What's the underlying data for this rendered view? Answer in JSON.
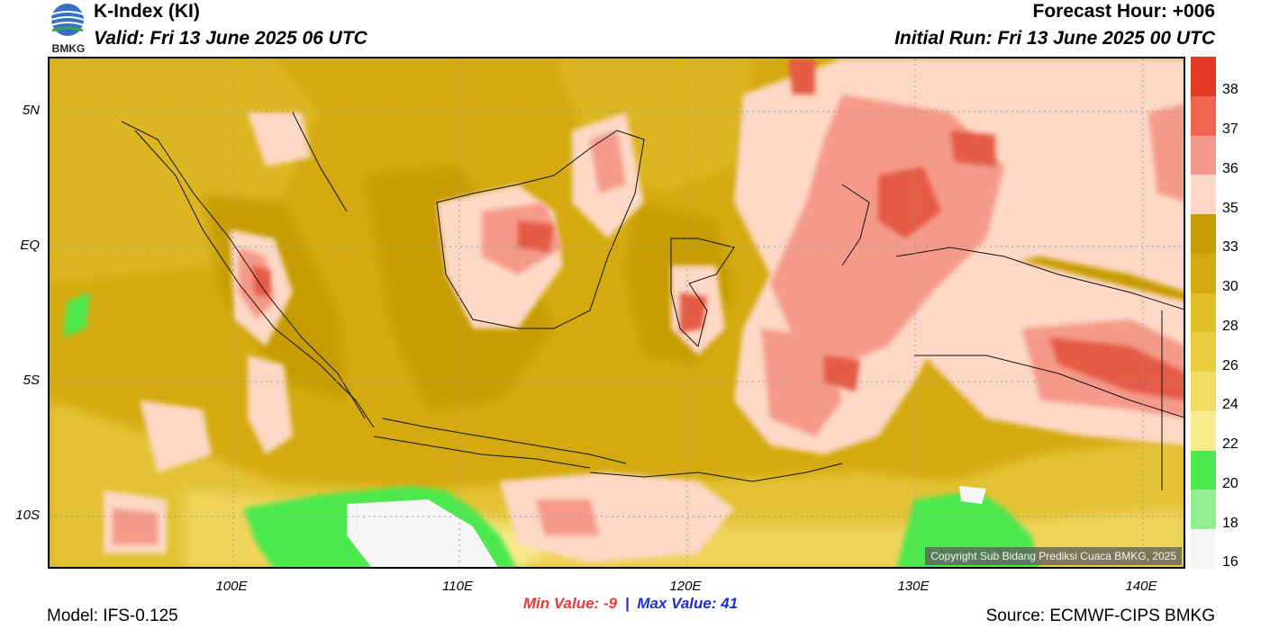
{
  "header": {
    "title": "K-Index (KI)",
    "valid": "Valid: Fri 13 June 2025 06 UTC",
    "forecast_hour": "Forecast Hour: +006",
    "initial_run": "Initial Run: Fri 13 June 2025 00 UTC",
    "logo_text": "BMKG"
  },
  "map": {
    "copyright": "Copyright Sub Bidang Prediksi Cuaca BMKG, 2025",
    "lat_labels": [
      "5N",
      "EQ",
      "5S",
      "10S"
    ],
    "lon_labels": [
      "100E",
      "110E",
      "120E",
      "130E",
      "140E"
    ]
  },
  "legend": {
    "labels": [
      "38",
      "37",
      "36",
      "35",
      "33",
      "30",
      "28",
      "26",
      "24",
      "22",
      "20",
      "18",
      "16"
    ],
    "colors": [
      "#e43a24",
      "#f0654f",
      "#f59a8a",
      "#fdd8c6",
      "#c69c00",
      "#d4aa10",
      "#e0bd25",
      "#e8cd40",
      "#f0dd62",
      "#f8ec8e",
      "#4de84d",
      "#90f090",
      "#f6f6f6"
    ]
  },
  "stats": {
    "min_label": "Min Value:",
    "min_value": "-9",
    "separator": "|",
    "max_label": "Max Value:",
    "max_value": "41"
  },
  "footer": {
    "model": "Model: IFS-0.125",
    "source": "Source: ECMWF-CIPS BMKG"
  }
}
